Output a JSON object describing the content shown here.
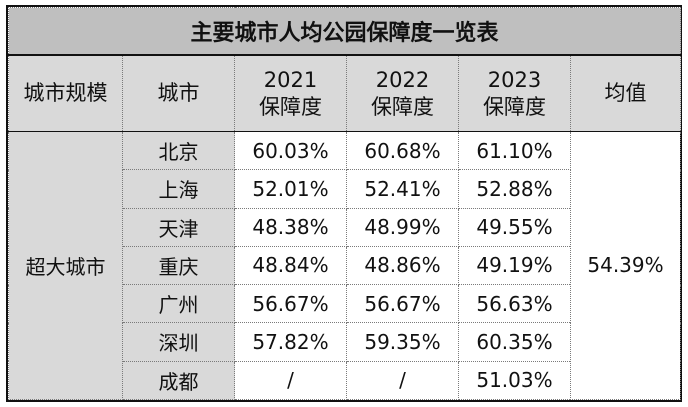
{
  "title": "主要城市人均公园保障度一览表",
  "headers": {
    "scale": "城市规模",
    "city": "城市",
    "y2021_line1": "2021",
    "y2021_line2": "保障度",
    "y2022_line1": "2022",
    "y2022_line2": "保障度",
    "y2023_line1": "2023",
    "y2023_line2": "保障度",
    "average": "均值"
  },
  "group": {
    "scale": "超大城市",
    "average": "54.39%"
  },
  "rows": [
    {
      "city": "北京",
      "v2021": "60.03%",
      "v2022": "60.68%",
      "v2023": "61.10%"
    },
    {
      "city": "上海",
      "v2021": "52.01%",
      "v2022": "52.41%",
      "v2023": "52.88%"
    },
    {
      "city": "天津",
      "v2021": "48.38%",
      "v2022": "48.99%",
      "v2023": "49.55%"
    },
    {
      "city": "重庆",
      "v2021": "48.84%",
      "v2022": "48.86%",
      "v2023": "49.19%"
    },
    {
      "city": "广州",
      "v2021": "56.67%",
      "v2022": "56.67%",
      "v2023": "56.63%"
    },
    {
      "city": "深圳",
      "v2021": "57.82%",
      "v2022": "59.35%",
      "v2023": "60.35%"
    },
    {
      "city": "成都",
      "v2021": "/",
      "v2022": "/",
      "v2023": "51.03%"
    }
  ],
  "colors": {
    "title_bg": "#bfbfbf",
    "header_bg": "#d9d9d9",
    "border": "#111111"
  }
}
